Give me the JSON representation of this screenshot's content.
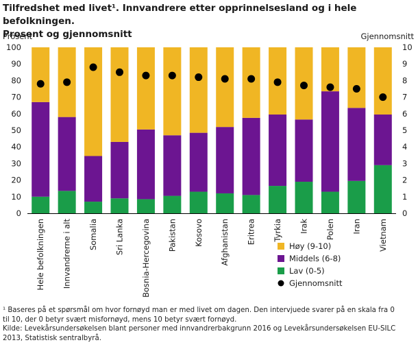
{
  "title_line1": "Tilfredshet med livet¹. Innvandrere etter opprinnelsesland og i hele befolkningen.",
  "title_line2": "Prosent og gjennomsnitt",
  "chart_data": {
    "type": "bar",
    "stacked": true,
    "categories": [
      "Hele befolkningen",
      "Innvandrerne i alt",
      "Somalia",
      "Sri Lanka",
      "Bosnia-Hercegovina",
      "Pakistan",
      "Kosovo",
      "Afghanistan",
      "Eritrea",
      "Tyrkia",
      "Irak",
      "Polen",
      "Iran",
      "Vietnam"
    ],
    "series": [
      {
        "name": "Lav (0-5)",
        "color": "#1a9d49",
        "values": [
          10,
          13.5,
          7,
          9,
          8.5,
          10.5,
          13,
          12,
          11,
          16.5,
          19,
          13,
          19.5,
          29
        ]
      },
      {
        "name": "Middels (6-8)",
        "color": "#6c1591",
        "values": [
          57,
          44.5,
          27.5,
          34,
          42,
          36.5,
          35.5,
          40,
          46.5,
          43,
          37.5,
          60.5,
          44,
          30.5
        ]
      },
      {
        "name": "Høy (9-10)",
        "color": "#f0b624",
        "values": [
          33,
          42,
          65.5,
          57,
          49.5,
          53,
          51.5,
          48,
          42.5,
          40.5,
          43.5,
          26.5,
          36.5,
          40.5
        ]
      }
    ],
    "average": {
      "name": "Gjennomsnitt",
      "color": "#000000",
      "values": [
        7.8,
        7.9,
        8.8,
        8.5,
        8.3,
        8.3,
        8.2,
        8.1,
        8.1,
        7.9,
        7.7,
        7.6,
        7.5,
        7.0
      ]
    },
    "y_left": {
      "label": "Prosent",
      "min": 0,
      "max": 100,
      "ticks": [
        "0",
        "10",
        "20",
        "30",
        "40",
        "50",
        "60",
        "70",
        "80",
        "90",
        "100"
      ]
    },
    "y_right": {
      "label": "Gjennomsnitt",
      "min": 0,
      "max": 10,
      "ticks": [
        "0",
        "1",
        "2",
        "3",
        "4",
        "5",
        "6",
        "7",
        "8",
        "9",
        "10"
      ]
    },
    "legend": [
      "Høy (9-10)",
      "Middels (6-8)",
      "Lav (0-5)",
      "Gjennomsnitt"
    ],
    "legend_position": "bottom-right",
    "grid": false
  },
  "footnote": {
    "line1": "¹ Baseres på et spørsmål om hvor fornøyd man er med livet om dagen. Den intervjuede svarer på en skala fra 0",
    "line2": "til 10, der 0 betyr svært misfornøyd, mens 10 betyr svært fornøyd.",
    "line3": "Kilde: Levekårsundersøkelsen blant personer med innvandrerbakgrunn 2016 og Levekårsundersøkelsen EU-SILC",
    "line4": "2013, Statistisk sentralbyrå."
  }
}
